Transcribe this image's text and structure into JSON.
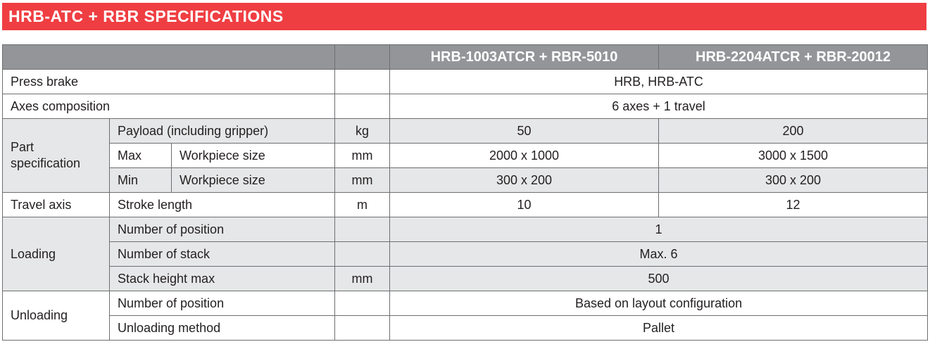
{
  "title": "HRB-ATC + RBR SPECIFICATIONS",
  "colors": {
    "title_bar": "#ef3e42",
    "header_bg": "#939598",
    "shaded_row": "#e6e7e8",
    "border": "#6d6e71"
  },
  "header": {
    "models": [
      "HRB-1003ATCR + RBR-5010",
      "HRB-2204ATCR + RBR-20012"
    ]
  },
  "rows": {
    "press_brake": {
      "label": "Press brake",
      "value": "HRB, HRB-ATC"
    },
    "axes": {
      "label": "Axes composition",
      "value": "6 axes + 1 travel"
    },
    "part_spec": {
      "label_line1": "Part",
      "label_line2": "specification",
      "payload": {
        "label": "Payload (including gripper)",
        "unit": "kg",
        "values": [
          "50",
          "200"
        ]
      },
      "max": {
        "qualifier": "Max",
        "label": "Workpiece size",
        "unit": "mm",
        "values": [
          "2000 x 1000",
          "3000 x 1500"
        ]
      },
      "min": {
        "qualifier": "Min",
        "label": "Workpiece size",
        "unit": "mm",
        "values": [
          "300 x 200",
          "300 x 200"
        ]
      }
    },
    "travel": {
      "label": "Travel axis",
      "sub": "Stroke length",
      "unit": "m",
      "values": [
        "10",
        "12"
      ]
    },
    "loading": {
      "label": "Loading",
      "position": {
        "label": "Number of position",
        "value": "1"
      },
      "stack": {
        "label": "Number of stack",
        "value": "Max. 6"
      },
      "height": {
        "label": "Stack height max",
        "unit": "mm",
        "value": "500"
      }
    },
    "unloading": {
      "label": "Unloading",
      "position": {
        "label": "Number of position",
        "value": "Based on layout configuration"
      },
      "method": {
        "label": "Unloading method",
        "value": "Pallet"
      }
    }
  }
}
